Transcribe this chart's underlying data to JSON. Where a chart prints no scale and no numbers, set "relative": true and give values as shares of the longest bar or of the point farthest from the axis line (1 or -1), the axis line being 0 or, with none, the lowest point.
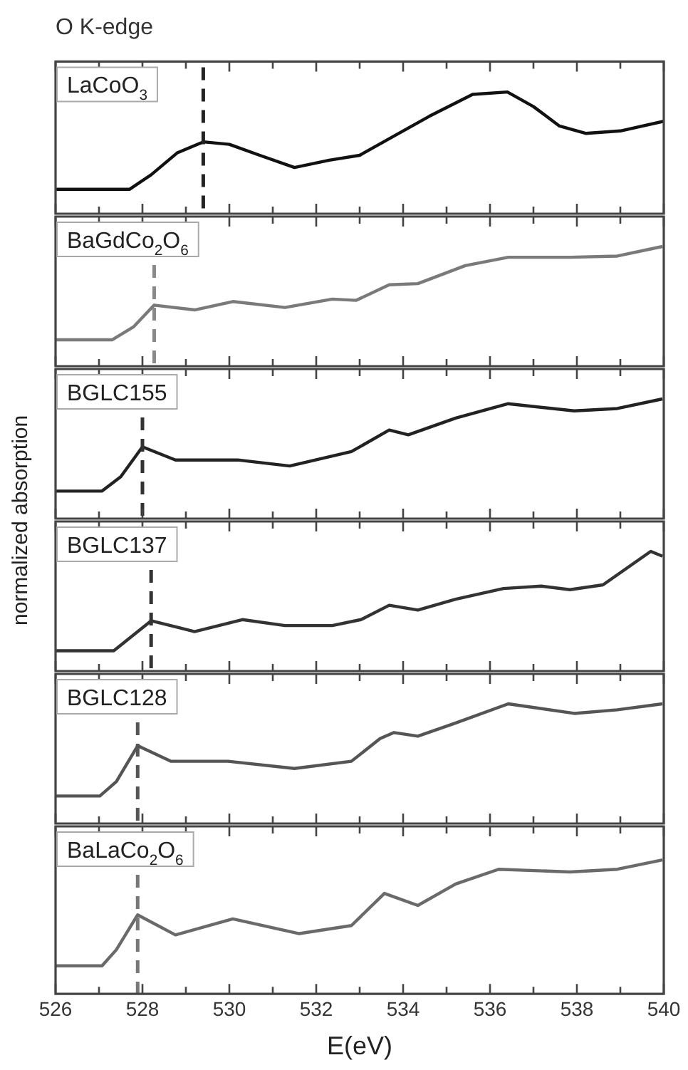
{
  "chart_data": [
    {
      "type": "line",
      "title": "O K-edge",
      "annotations": [
        "LaCoO$_{3}$"
      ],
      "relative": true,
      "legend": false,
      "grid": false,
      "marker": "none",
      "line_style": "solid",
      "tick_labels": false,
      "xlim": [
        526,
        540
      ],
      "xticks": [
        526,
        {
          "value": 527,
          "label": null
        },
        528,
        {
          "value": 529,
          "label": null
        },
        530,
        {
          "value": 531,
          "label": null
        },
        532,
        {
          "value": 533,
          "label": null
        },
        534,
        {
          "value": 535,
          "label": null
        },
        536,
        {
          "value": 537,
          "label": null
        },
        538,
        {
          "value": 539,
          "label": null
        },
        540
      ],
      "x": [
        526.0,
        527.0,
        527.7,
        528.2,
        528.8,
        529.4,
        530.0,
        530.7,
        531.5,
        532.3,
        533.0,
        533.8,
        534.6,
        535.6,
        536.4,
        537.0,
        537.6,
        538.2,
        539.0,
        540.0
      ],
      "series": [
        {
          "color": "#111111",
          "values": [
            0.2,
            0.2,
            0.2,
            0.32,
            0.5,
            0.59,
            0.57,
            0.48,
            0.38,
            0.44,
            0.48,
            0.64,
            0.8,
            0.98,
            1.0,
            0.88,
            0.72,
            0.66,
            0.68,
            0.76
          ]
        }
      ],
      "ref_lines": [
        {
          "axis": "x",
          "value": 529.4,
          "color": "#222222",
          "line_style": "dashed"
        }
      ]
    },
    {
      "type": "line",
      "annotations": [
        "BaGdCo$_{2}$O$_{6}$"
      ],
      "relative": true,
      "legend": false,
      "grid": false,
      "marker": "none",
      "line_style": "solid",
      "tick_labels": false,
      "xlim": [
        526,
        540
      ],
      "xticks": [
        526,
        {
          "value": 527,
          "label": null
        },
        528,
        {
          "value": 529,
          "label": null
        },
        530,
        {
          "value": 531,
          "label": null
        },
        532,
        {
          "value": 533,
          "label": null
        },
        534,
        {
          "value": 535,
          "label": null
        },
        536,
        {
          "value": 537,
          "label": null
        },
        538,
        {
          "value": 539,
          "label": null
        },
        540
      ],
      "x": [
        526.0,
        527.3,
        527.8,
        528.27,
        529.2,
        530.08,
        531.28,
        532.37,
        532.92,
        533.68,
        534.34,
        535.43,
        536.42,
        537.84,
        538.93,
        539.97
      ],
      "series": [
        {
          "color": "#7a7a7a",
          "values": [
            0.22,
            0.22,
            0.33,
            0.51,
            0.47,
            0.54,
            0.49,
            0.56,
            0.55,
            0.68,
            0.69,
            0.84,
            0.91,
            0.91,
            0.92,
            1.0
          ]
        }
      ],
      "ref_lines": [
        {
          "axis": "x",
          "value": 528.27,
          "color": "#8a8a8a",
          "line_style": "dashed"
        }
      ]
    },
    {
      "type": "line",
      "annotations": [
        "BGLC155"
      ],
      "relative": true,
      "legend": false,
      "grid": false,
      "marker": "none",
      "line_style": "solid",
      "tick_labels": false,
      "xlim": [
        526,
        540
      ],
      "xticks": [
        526,
        {
          "value": 527,
          "label": null
        },
        528,
        {
          "value": 529,
          "label": null
        },
        530,
        {
          "value": 531,
          "label": null
        },
        532,
        {
          "value": 533,
          "label": null
        },
        534,
        {
          "value": 535,
          "label": null
        },
        536,
        {
          "value": 537,
          "label": null
        },
        538,
        {
          "value": 539,
          "label": null
        },
        540
      ],
      "x": [
        526.0,
        527.07,
        527.5,
        528.0,
        528.76,
        530.19,
        531.39,
        532.81,
        533.68,
        534.12,
        535.21,
        536.42,
        537.94,
        538.93,
        539.97
      ],
      "series": [
        {
          "color": "#222222",
          "values": [
            0.23,
            0.23,
            0.35,
            0.6,
            0.49,
            0.49,
            0.44,
            0.56,
            0.74,
            0.7,
            0.84,
            0.96,
            0.9,
            0.92,
            1.0
          ]
        }
      ],
      "ref_lines": [
        {
          "axis": "x",
          "value": 528.0,
          "color": "#333333",
          "line_style": "dashed"
        }
      ]
    },
    {
      "type": "line",
      "annotations": [
        "BGLC137"
      ],
      "relative": true,
      "legend": false,
      "grid": false,
      "marker": "none",
      "line_style": "solid",
      "tick_labels": false,
      "xlim": [
        526,
        540
      ],
      "xticks": [
        526,
        {
          "value": 527,
          "label": null
        },
        528,
        {
          "value": 529,
          "label": null
        },
        530,
        {
          "value": 531,
          "label": null
        },
        532,
        {
          "value": 533,
          "label": null
        },
        534,
        {
          "value": 535,
          "label": null
        },
        536,
        {
          "value": 537,
          "label": null
        },
        538,
        {
          "value": 539,
          "label": null
        },
        540
      ],
      "x": [
        526.0,
        527.34,
        528.2,
        529.2,
        530.3,
        531.28,
        532.37,
        533.03,
        533.68,
        534.34,
        535.21,
        536.31,
        537.18,
        537.84,
        538.6,
        539.7,
        539.97
      ],
      "series": [
        {
          "color": "#333333",
          "values": [
            0.17,
            0.17,
            0.42,
            0.33,
            0.43,
            0.38,
            0.38,
            0.43,
            0.55,
            0.51,
            0.6,
            0.69,
            0.71,
            0.68,
            0.72,
            1.0,
            0.96
          ]
        }
      ],
      "ref_lines": [
        {
          "axis": "x",
          "value": 528.2,
          "color": "#333333",
          "line_style": "dashed"
        }
      ]
    },
    {
      "type": "line",
      "annotations": [
        "BGLC128"
      ],
      "relative": true,
      "legend": false,
      "grid": false,
      "marker": "none",
      "line_style": "solid",
      "tick_labels": false,
      "xlim": [
        526,
        540
      ],
      "ylabel": "normalized absorption",
      "xticks": [
        526,
        {
          "value": 527,
          "label": null
        },
        528,
        {
          "value": 529,
          "label": null
        },
        530,
        {
          "value": 531,
          "label": null
        },
        532,
        {
          "value": 533,
          "label": null
        },
        534,
        {
          "value": 535,
          "label": null
        },
        536,
        {
          "value": 537,
          "label": null
        },
        538,
        {
          "value": 539,
          "label": null
        },
        540
      ],
      "x": [
        526.0,
        527.02,
        527.4,
        527.89,
        528.66,
        529.97,
        531.5,
        532.81,
        533.47,
        533.79,
        534.34,
        535.21,
        536.42,
        537.94,
        538.93,
        539.97
      ],
      "series": [
        {
          "color": "#555555",
          "values": [
            0.23,
            0.23,
            0.35,
            0.65,
            0.52,
            0.52,
            0.46,
            0.52,
            0.71,
            0.76,
            0.73,
            0.84,
            1.0,
            0.92,
            0.95,
            1.0
          ]
        }
      ],
      "ref_lines": [
        {
          "axis": "x",
          "value": 527.89,
          "color": "#555555",
          "line_style": "dashed"
        }
      ]
    },
    {
      "type": "line",
      "annotations": [
        "BaLaCo$_{2}$O$_{6}$"
      ],
      "xlabel": "E(eV)",
      "relative": true,
      "legend": false,
      "grid": false,
      "marker": "none",
      "line_style": "solid",
      "tick_labels": "x",
      "xlim": [
        526,
        540
      ],
      "xticks": [
        526,
        {
          "value": 527,
          "label": null
        },
        528,
        {
          "value": 529,
          "label": null
        },
        530,
        {
          "value": 531,
          "label": null
        },
        532,
        {
          "value": 533,
          "label": null
        },
        534,
        {
          "value": 535,
          "label": null
        },
        536,
        {
          "value": 537,
          "label": null
        },
        538,
        {
          "value": 539,
          "label": null
        },
        540
      ],
      "x": [
        526.0,
        527.07,
        527.4,
        527.89,
        528.76,
        530.08,
        531.61,
        532.81,
        533.57,
        534.34,
        535.21,
        536.2,
        537.84,
        538.93,
        539.97
      ],
      "series": [
        {
          "color": "#6a6a6a",
          "values": [
            0.21,
            0.21,
            0.33,
            0.59,
            0.44,
            0.56,
            0.45,
            0.51,
            0.75,
            0.66,
            0.82,
            0.93,
            0.91,
            0.93,
            1.0
          ]
        }
      ],
      "ref_lines": [
        {
          "axis": "x",
          "value": 527.89,
          "color": "#777777",
          "line_style": "dashed"
        }
      ]
    }
  ]
}
